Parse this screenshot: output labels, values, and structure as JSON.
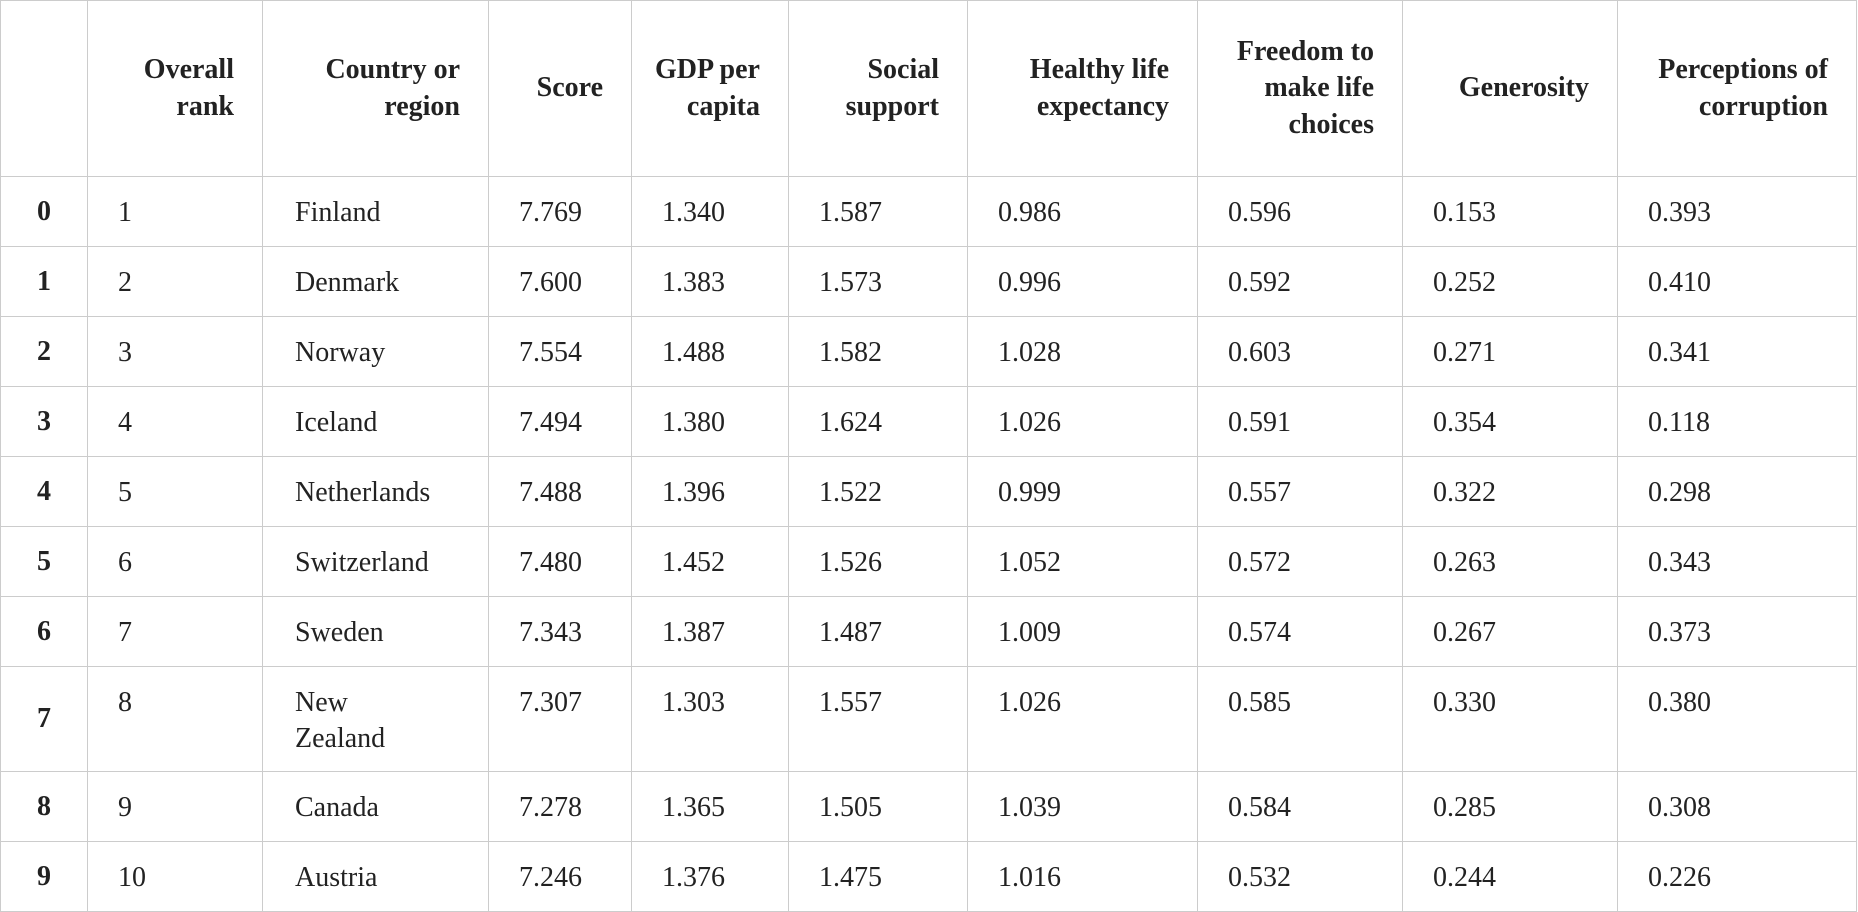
{
  "table": {
    "header": [
      "Overall rank",
      "Country or region",
      "Score",
      "GDP per capita",
      "Social support",
      "Healthy life expectancy",
      "Freedom to make life choices",
      "Generosity",
      "Perceptions of corruption"
    ],
    "rows": [
      {
        "index": "0",
        "cells": [
          "1",
          "Finland",
          "7.769",
          "1.340",
          "1.587",
          "0.986",
          "0.596",
          "0.153",
          "0.393"
        ]
      },
      {
        "index": "1",
        "cells": [
          "2",
          "Denmark",
          "7.600",
          "1.383",
          "1.573",
          "0.996",
          "0.592",
          "0.252",
          "0.410"
        ]
      },
      {
        "index": "2",
        "cells": [
          "3",
          "Norway",
          "7.554",
          "1.488",
          "1.582",
          "1.028",
          "0.603",
          "0.271",
          "0.341"
        ]
      },
      {
        "index": "3",
        "cells": [
          "4",
          "Iceland",
          "7.494",
          "1.380",
          "1.624",
          "1.026",
          "0.591",
          "0.354",
          "0.118"
        ]
      },
      {
        "index": "4",
        "cells": [
          "5",
          "Netherlands",
          "7.488",
          "1.396",
          "1.522",
          "0.999",
          "0.557",
          "0.322",
          "0.298"
        ]
      },
      {
        "index": "5",
        "cells": [
          "6",
          "Switzerland",
          "7.480",
          "1.452",
          "1.526",
          "1.052",
          "0.572",
          "0.263",
          "0.343"
        ]
      },
      {
        "index": "6",
        "cells": [
          "7",
          "Sweden",
          "7.343",
          "1.387",
          "1.487",
          "1.009",
          "0.574",
          "0.267",
          "0.373"
        ]
      },
      {
        "index": "7",
        "cells": [
          "8",
          "New Zealand",
          "7.307",
          "1.303",
          "1.557",
          "1.026",
          "0.585",
          "0.330",
          "0.380"
        ]
      },
      {
        "index": "8",
        "cells": [
          "9",
          "Canada",
          "7.278",
          "1.365",
          "1.505",
          "1.039",
          "0.584",
          "0.285",
          "0.308"
        ]
      },
      {
        "index": "9",
        "cells": [
          "10",
          "Austria",
          "7.246",
          "1.376",
          "1.475",
          "1.016",
          "0.532",
          "0.244",
          "0.226"
        ]
      }
    ]
  }
}
